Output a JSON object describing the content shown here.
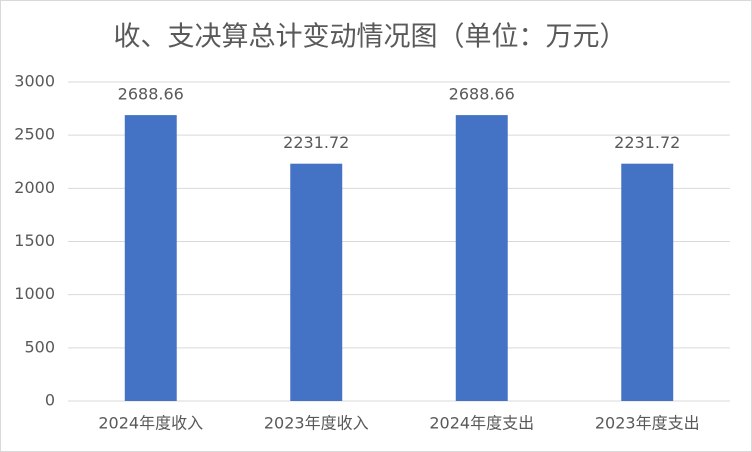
{
  "chart_data": {
    "type": "bar",
    "title": "收、支决算总计变动情况图（单位：万元）",
    "categories": [
      "2024年度收入",
      "2023年度收入",
      "2024年度支出",
      "2023年度支出"
    ],
    "values": [
      2688.66,
      2231.72,
      2688.66,
      2231.72
    ],
    "color": "#4472c4",
    "ylim": [
      0,
      3000
    ],
    "yticks": [
      0,
      500,
      1000,
      1500,
      2000,
      2500,
      3000
    ],
    "grid": true
  }
}
